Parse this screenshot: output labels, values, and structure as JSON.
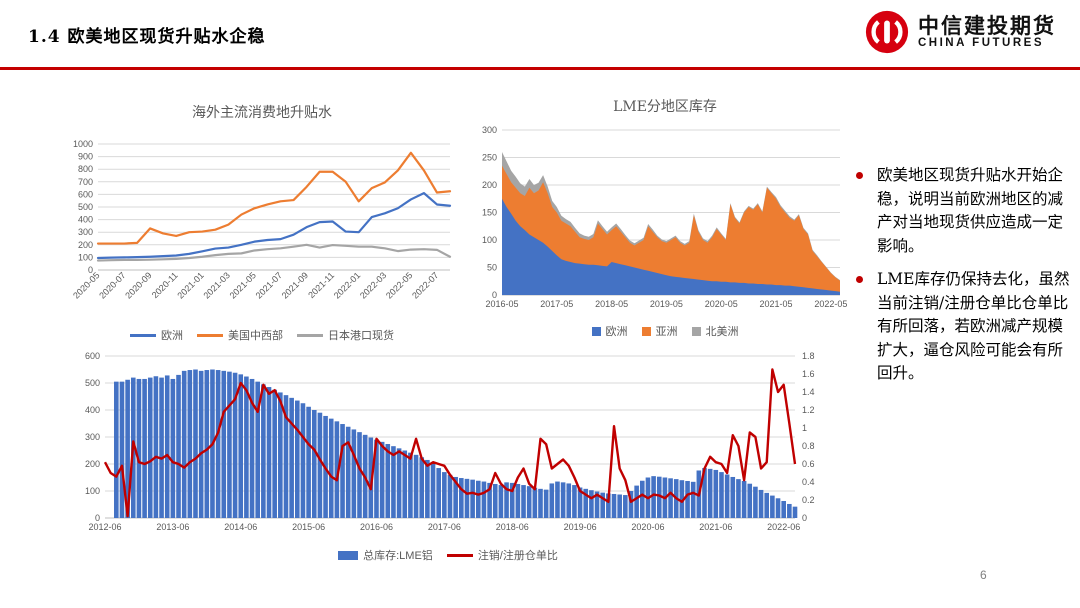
{
  "header": {
    "title": "1.4 欧美地区现货升贴水企稳",
    "logo_cn": "中信建投期货",
    "logo_en": "CHINA FUTURES"
  },
  "page_number": "6",
  "bullets": [
    "欧美地区现货升贴水开始企稳，说明当前欧洲地区的减产对当地现货供应造成一定影响。",
    "LME库存仍保持去化，虽然当前注销/注册仓单比仓单比有所回落，若欧洲减产规模扩大，逼仓风险可能会有所回升。"
  ],
  "colors": {
    "blue": "#4472C4",
    "orange": "#ED7D31",
    "gray": "#A5A5A5",
    "red": "#C00000",
    "rule_red": "#C40000",
    "grid": "#D9D9D9",
    "tick_text": "#595959"
  },
  "chart_data": [
    {
      "type": "line",
      "title": "海外主流消费地升贴水",
      "n": 28,
      "ylim": [
        0,
        1000
      ],
      "ystep": 100,
      "grid": true,
      "legend_position": "bottom",
      "xtick_indices": [
        0,
        2,
        4,
        6,
        8,
        10,
        12,
        14,
        16,
        18,
        20,
        22,
        24,
        26
      ],
      "xtick_labels": [
        "2020-05",
        "2020-07",
        "2020-09",
        "2020-11",
        "2021-01",
        "2021-03",
        "2021-05",
        "2021-07",
        "2021-09",
        "2021-11",
        "2022-01",
        "2022-03",
        "2022-05",
        "2022-07"
      ],
      "series": [
        {
          "name": "欧洲",
          "color": "#4472C4",
          "values": [
            95,
            98,
            100,
            102,
            105,
            110,
            115,
            128,
            148,
            170,
            178,
            200,
            225,
            238,
            245,
            280,
            340,
            380,
            385,
            305,
            300,
            420,
            450,
            490,
            560,
            610,
            520,
            510
          ]
        },
        {
          "name": "美国中西部",
          "color": "#ED7D31",
          "values": [
            210,
            210,
            210,
            215,
            330,
            290,
            270,
            300,
            305,
            320,
            360,
            440,
            490,
            520,
            545,
            555,
            660,
            780,
            780,
            700,
            545,
            650,
            695,
            790,
            930,
            790,
            615,
            625
          ]
        },
        {
          "name": "日本港口现货",
          "color": "#A5A5A5",
          "values": [
            75,
            78,
            80,
            80,
            82,
            85,
            88,
            95,
            105,
            118,
            128,
            132,
            155,
            165,
            172,
            185,
            200,
            178,
            198,
            192,
            185,
            185,
            172,
            150,
            162,
            165,
            160,
            105
          ]
        }
      ]
    },
    {
      "type": "area",
      "title": "LME分地区库存",
      "n": 75,
      "ylim": [
        0,
        300
      ],
      "ystep": 50,
      "grid": true,
      "legend_position": "bottom",
      "xtick_indices": [
        0,
        12,
        24,
        36,
        48,
        60,
        72
      ],
      "xtick_labels": [
        "2016-05",
        "2017-05",
        "2018-05",
        "2019-05",
        "2020-05",
        "2021-05",
        "2022-05"
      ],
      "series": [
        {
          "name": "欧洲",
          "color": "#4472C4",
          "values": [
            175,
            160,
            148,
            135,
            125,
            118,
            110,
            105,
            100,
            95,
            88,
            80,
            72,
            65,
            62,
            60,
            58,
            57,
            56,
            55,
            55,
            54,
            53,
            52,
            60,
            58,
            56,
            54,
            52,
            50,
            48,
            46,
            44,
            42,
            40,
            38,
            36,
            34,
            33,
            32,
            31,
            30,
            29,
            28,
            27,
            26,
            25,
            25,
            24,
            24,
            23,
            23,
            22,
            22,
            21,
            21,
            20,
            20,
            19,
            19,
            18,
            18,
            17,
            17,
            16,
            15,
            14,
            13,
            12,
            11,
            10,
            9,
            8,
            7,
            6
          ]
        },
        {
          "name": "亚洲",
          "color": "#ED7D31",
          "values": [
            60,
            60,
            57,
            60,
            60,
            62,
            85,
            80,
            90,
            110,
            97,
            80,
            78,
            70,
            68,
            65,
            57,
            48,
            46,
            45,
            50,
            76,
            67,
            58,
            58,
            67,
            59,
            51,
            43,
            40,
            47,
            54,
            81,
            73,
            65,
            60,
            59,
            66,
            72,
            63,
            59,
            65,
            116,
            87,
            73,
            69,
            80,
            95,
            86,
            76,
            142,
            117,
            108,
            128,
            139,
            134,
            145,
            130,
            176,
            166,
            157,
            142,
            133,
            123,
            119,
            130,
            106,
            97,
            68,
            59,
            50,
            41,
            32,
            25,
            20
          ]
        },
        {
          "name": "北美洲",
          "color": "#A5A5A5",
          "values": [
            25,
            23,
            21,
            20,
            18,
            17,
            16,
            15,
            14,
            13,
            12,
            11,
            10,
            9,
            8,
            8,
            7,
            7,
            6,
            6,
            6,
            6,
            5,
            5,
            5,
            5,
            5,
            4,
            4,
            4,
            4,
            4,
            4,
            4,
            3,
            3,
            3,
            3,
            3,
            3,
            3,
            3,
            3,
            3,
            3,
            3,
            3,
            3,
            2,
            2,
            2,
            2,
            2,
            2,
            2,
            2,
            2,
            2,
            2,
            2,
            3,
            3,
            3,
            3,
            2,
            2,
            2,
            2,
            2,
            2,
            1,
            1,
            1,
            1,
            1
          ]
        }
      ]
    },
    {
      "type": "bar+line",
      "title": "",
      "n": 123,
      "ylim": [
        0,
        600
      ],
      "ystep": 100,
      "ylim2": [
        0,
        1.8
      ],
      "ystep2": 0.2,
      "grid": true,
      "legend_position": "bottom",
      "xtick_indices": [
        0,
        12,
        24,
        36,
        48,
        60,
        72,
        84,
        96,
        108,
        120
      ],
      "xtick_labels": [
        "2012-06",
        "2013-06",
        "2014-06",
        "2015-06",
        "2016-06",
        "2017-06",
        "2018-06",
        "2019-06",
        "2020-06",
        "2021-06",
        "2022-06"
      ],
      "bars": {
        "name": "总库存:LME铝",
        "color": "#4472C4",
        "values": [
          0,
          0,
          505,
          505,
          512,
          520,
          515,
          515,
          520,
          525,
          520,
          528,
          515,
          530,
          545,
          548,
          550,
          545,
          548,
          550,
          548,
          545,
          542,
          538,
          532,
          524,
          515,
          505,
          495,
          485,
          475,
          465,
          455,
          445,
          435,
          425,
          412,
          400,
          390,
          378,
          368,
          358,
          348,
          338,
          328,
          318,
          308,
          298,
          290,
          282,
          274,
          266,
          258,
          250,
          242,
          234,
          225,
          215,
          200,
          185,
          170,
          160,
          152,
          148,
          145,
          142,
          138,
          135,
          130,
          126,
          122,
          132,
          130,
          126,
          122,
          118,
          112,
          108,
          105,
          128,
          135,
          132,
          128,
          122,
          113,
          108,
          103,
          98,
          94,
          91,
          89,
          87,
          85,
          100,
          120,
          138,
          150,
          155,
          153,
          150,
          147,
          144,
          140,
          137,
          134,
          176,
          185,
          182,
          178,
          170,
          161,
          152,
          144,
          137,
          127,
          116,
          104,
          93,
          83,
          73,
          63,
          52,
          42
        ]
      },
      "line": {
        "name": "注销/注册仓单比",
        "color": "#C00000",
        "values": [
          0.62,
          0.5,
          0.46,
          0.58,
          0.02,
          0.85,
          0.62,
          0.6,
          0.63,
          0.68,
          0.66,
          0.7,
          0.62,
          0.6,
          0.56,
          0.62,
          0.66,
          0.72,
          0.76,
          0.82,
          0.95,
          1.18,
          1.25,
          1.32,
          1.5,
          1.42,
          1.28,
          1.18,
          1.48,
          1.38,
          1.42,
          1.3,
          1.12,
          1.05,
          0.98,
          0.9,
          0.82,
          0.76,
          0.65,
          0.55,
          0.46,
          0.42,
          0.8,
          0.84,
          0.7,
          0.55,
          0.45,
          0.32,
          0.88,
          0.8,
          0.74,
          0.7,
          0.74,
          0.7,
          0.66,
          0.88,
          0.66,
          0.58,
          0.62,
          0.6,
          0.58,
          0.48,
          0.4,
          0.32,
          0.27,
          0.28,
          0.26,
          0.28,
          0.32,
          0.5,
          0.38,
          0.32,
          0.3,
          0.45,
          0.55,
          0.38,
          0.32,
          0.88,
          0.82,
          0.55,
          0.6,
          0.65,
          0.58,
          0.45,
          0.3,
          0.26,
          0.22,
          0.26,
          0.22,
          0.18,
          1.02,
          0.55,
          0.42,
          0.18,
          0.22,
          0.26,
          0.22,
          0.26,
          0.25,
          0.22,
          0.28,
          0.22,
          0.18,
          0.26,
          0.28,
          0.25,
          0.55,
          0.68,
          0.62,
          0.6,
          0.5,
          0.92,
          0.8,
          0.42,
          0.95,
          0.9,
          0.55,
          0.62,
          1.65,
          1.4,
          1.48,
          1.05,
          0.6
        ]
      }
    }
  ]
}
